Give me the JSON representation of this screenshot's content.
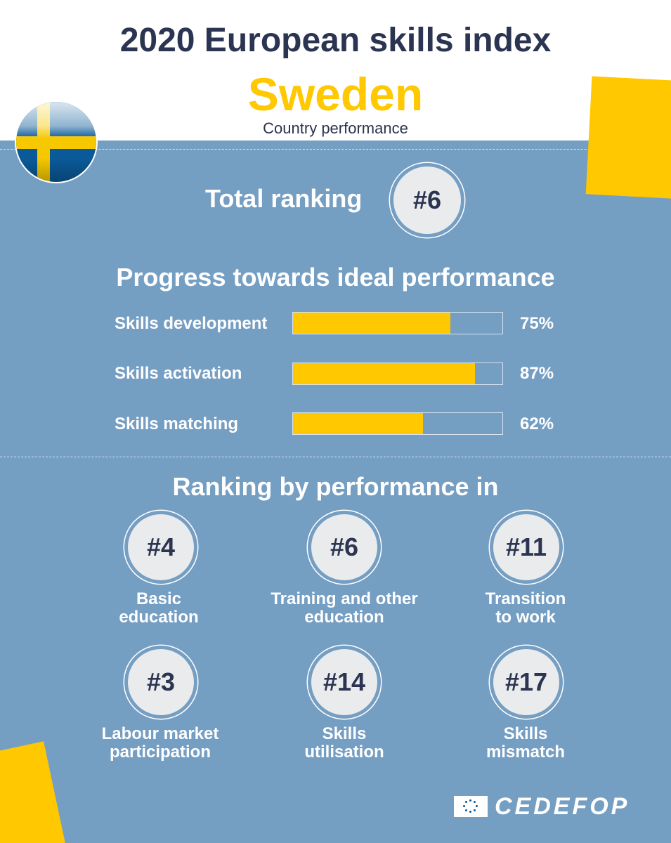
{
  "header": {
    "title": "2020 European skills index",
    "country": "Sweden",
    "subtitle": "Country performance"
  },
  "colors": {
    "accent": "#ffc800",
    "panel": "#759ec3",
    "text_dark": "#2b3450"
  },
  "flag": {
    "icon": "sweden-flag-icon"
  },
  "total": {
    "label": "Total ranking",
    "rank": "#6"
  },
  "progress": {
    "title": "Progress towards ideal performance",
    "items": [
      {
        "label": "Skills development",
        "value": 75,
        "pct_label": "75%"
      },
      {
        "label": "Skills activation",
        "value": 87,
        "pct_label": "87%"
      },
      {
        "label": "Skills matching",
        "value": 62,
        "pct_label": "62%"
      }
    ]
  },
  "ranking": {
    "title": "Ranking by performance in",
    "items": [
      {
        "rank": "#4",
        "line1": "Basic",
        "line2": "education"
      },
      {
        "rank": "#6",
        "line1": "Training and other",
        "line2": "education"
      },
      {
        "rank": "#11",
        "line1": "Transition",
        "line2": "to work"
      },
      {
        "rank": "#3",
        "line1": "Labour market",
        "line2": "participation"
      },
      {
        "rank": "#14",
        "line1": "Skills",
        "line2": "utilisation"
      },
      {
        "rank": "#17",
        "line1": "Skills",
        "line2": "mismatch"
      }
    ]
  },
  "logo": {
    "text": "CEDEFOP",
    "icon": "eu-flag-icon"
  }
}
